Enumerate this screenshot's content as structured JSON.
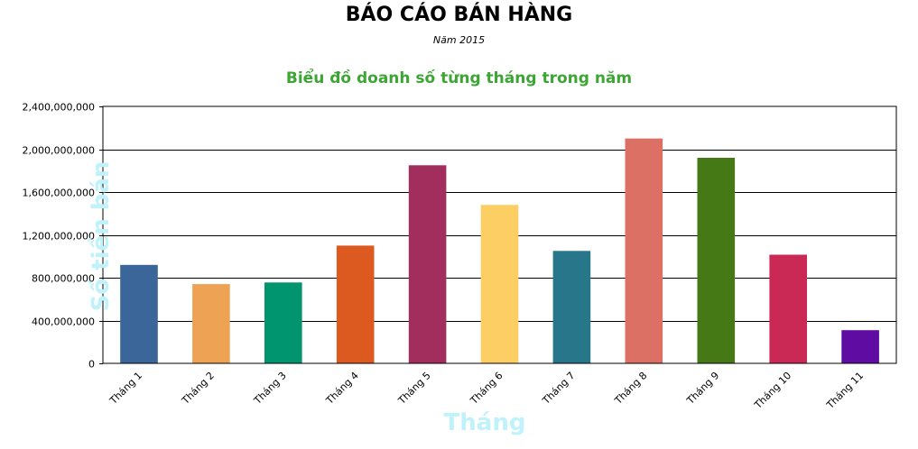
{
  "report": {
    "title": "BÁO CÁO BÁN HÀNG",
    "subtitle": "Năm 2015"
  },
  "chart_data": {
    "type": "bar",
    "title": "Biểu đồ doanh số từng tháng trong năm",
    "xlabel": "Tháng",
    "ylabel": "Số tiền bán",
    "categories": [
      "Tháng 1",
      "Tháng 2",
      "Tháng 3",
      "Tháng 4",
      "Tháng 5",
      "Tháng 6",
      "Tháng 7",
      "Tháng 8",
      "Tháng 9",
      "Tháng 10",
      "Tháng 11"
    ],
    "values": [
      920000000,
      740000000,
      755000000,
      1100000000,
      1850000000,
      1480000000,
      1050000000,
      2100000000,
      1920000000,
      1015000000,
      310000000
    ],
    "colors": [
      "#3a6699",
      "#eea354",
      "#00956f",
      "#dc5a20",
      "#a12e5d",
      "#fcce63",
      "#27768a",
      "#dc7064",
      "#447916",
      "#ca2855",
      "#5f0ca2"
    ],
    "ylim": [
      0,
      2400000000
    ],
    "yticks": [
      0,
      400000000,
      800000000,
      1200000000,
      1600000000,
      2000000000,
      2400000000
    ],
    "ytick_labels": [
      "0",
      "400,000,000",
      "800,000,000",
      "1,200,000,000",
      "1,600,000,000",
      "2,000,000,000",
      "2,400,000,000"
    ],
    "grid": true,
    "legend": false
  }
}
